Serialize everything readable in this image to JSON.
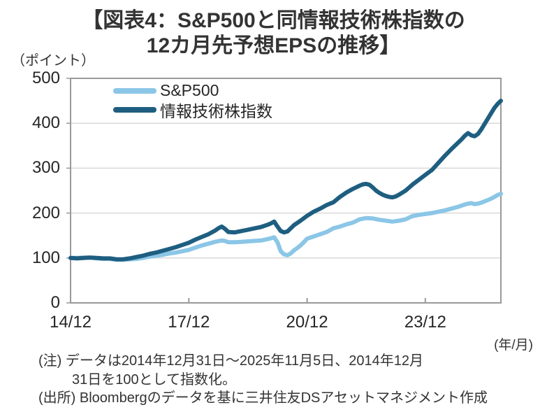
{
  "title": {
    "line1": "【図表4：S&P500と同情報技術株指数の",
    "line2": "12カ月先予想EPSの推移】"
  },
  "y_axis": {
    "unit_label": "（ポイント）"
  },
  "x_axis": {
    "unit_label": "(年/月)"
  },
  "notes": {
    "line1": "(注) データは2014年12月31日～2025年11月5日、2014年12月",
    "line2": "31日を100として指数化。",
    "source": "(出所) Bloombergのデータを基に三井住友DSアセットマネジメント作成"
  },
  "colors": {
    "sp500_line": "#8bc6e6",
    "it_line": "#1e5e80",
    "grid": "#d9d9d9",
    "axis_border": "#999999",
    "text": "#333333"
  },
  "chart_data": {
    "type": "line",
    "title": "【図表4：S&P500と同情報技術株指数の12カ月先予想EPSの推移】",
    "ylabel": "（ポイント）",
    "xlabel": "(年/月)",
    "ylim": [
      0,
      500
    ],
    "yticks": [
      0,
      100,
      200,
      300,
      400,
      500
    ],
    "xlim": [
      0,
      131
    ],
    "x_unit": "months since 2014/12 (data 2014/12/31 - 2025/11/5, indexed 2014/12/31 = 100)",
    "xticks": [
      {
        "m": 0,
        "label": "14/12"
      },
      {
        "m": 36,
        "label": "17/12"
      },
      {
        "m": 72,
        "label": "20/12"
      },
      {
        "m": 108,
        "label": "23/12"
      }
    ],
    "grid": "horizontal",
    "legend_position": "top-left-inside",
    "series": [
      {
        "name": "S&P500",
        "color": "#8bc6e6",
        "points": [
          [
            0,
            100
          ],
          [
            2,
            100
          ],
          [
            4,
            101
          ],
          [
            6,
            101
          ],
          [
            8,
            99
          ],
          [
            10,
            98
          ],
          [
            12,
            98
          ],
          [
            14,
            96
          ],
          [
            16,
            96
          ],
          [
            18,
            97
          ],
          [
            20,
            98
          ],
          [
            22,
            100
          ],
          [
            24,
            103
          ],
          [
            26,
            105
          ],
          [
            28,
            107
          ],
          [
            30,
            110
          ],
          [
            32,
            112
          ],
          [
            34,
            115
          ],
          [
            36,
            118
          ],
          [
            38,
            123
          ],
          [
            40,
            128
          ],
          [
            42,
            132
          ],
          [
            44,
            136
          ],
          [
            46,
            139
          ],
          [
            47,
            138
          ],
          [
            48,
            135
          ],
          [
            50,
            135
          ],
          [
            52,
            136
          ],
          [
            54,
            137
          ],
          [
            56,
            138
          ],
          [
            58,
            139
          ],
          [
            60,
            142
          ],
          [
            61,
            144
          ],
          [
            62,
            146
          ],
          [
            63,
            135
          ],
          [
            64,
            115
          ],
          [
            65,
            108
          ],
          [
            66,
            106
          ],
          [
            67,
            110
          ],
          [
            68,
            117
          ],
          [
            69,
            122
          ],
          [
            70,
            128
          ],
          [
            71,
            135
          ],
          [
            72,
            143
          ],
          [
            74,
            148
          ],
          [
            76,
            153
          ],
          [
            78,
            158
          ],
          [
            80,
            166
          ],
          [
            82,
            170
          ],
          [
            84,
            175
          ],
          [
            86,
            179
          ],
          [
            88,
            186
          ],
          [
            90,
            189
          ],
          [
            92,
            188
          ],
          [
            94,
            185
          ],
          [
            96,
            183
          ],
          [
            98,
            181
          ],
          [
            100,
            183
          ],
          [
            102,
            186
          ],
          [
            104,
            193
          ],
          [
            106,
            196
          ],
          [
            108,
            198
          ],
          [
            110,
            200
          ],
          [
            112,
            203
          ],
          [
            114,
            206
          ],
          [
            116,
            210
          ],
          [
            118,
            214
          ],
          [
            120,
            219
          ],
          [
            121,
            221
          ],
          [
            122,
            222
          ],
          [
            123,
            220
          ],
          [
            124,
            221
          ],
          [
            125,
            223
          ],
          [
            126,
            226
          ],
          [
            127,
            229
          ],
          [
            128,
            232
          ],
          [
            129,
            236
          ],
          [
            130,
            240
          ],
          [
            131,
            243
          ]
        ]
      },
      {
        "name": "情報技術株指数",
        "color": "#1e5e80",
        "points": [
          [
            0,
            100
          ],
          [
            2,
            99
          ],
          [
            4,
            100
          ],
          [
            6,
            101
          ],
          [
            8,
            100
          ],
          [
            10,
            99
          ],
          [
            12,
            99
          ],
          [
            14,
            97
          ],
          [
            16,
            97
          ],
          [
            18,
            99
          ],
          [
            20,
            102
          ],
          [
            22,
            105
          ],
          [
            24,
            109
          ],
          [
            26,
            112
          ],
          [
            28,
            116
          ],
          [
            30,
            120
          ],
          [
            32,
            124
          ],
          [
            34,
            129
          ],
          [
            36,
            134
          ],
          [
            38,
            141
          ],
          [
            40,
            147
          ],
          [
            42,
            153
          ],
          [
            44,
            161
          ],
          [
            45,
            166
          ],
          [
            46,
            170
          ],
          [
            47,
            165
          ],
          [
            48,
            158
          ],
          [
            50,
            157
          ],
          [
            52,
            160
          ],
          [
            54,
            163
          ],
          [
            56,
            166
          ],
          [
            58,
            169
          ],
          [
            60,
            174
          ],
          [
            61,
            177
          ],
          [
            62,
            181
          ],
          [
            63,
            170
          ],
          [
            64,
            160
          ],
          [
            65,
            157
          ],
          [
            66,
            159
          ],
          [
            67,
            166
          ],
          [
            68,
            173
          ],
          [
            70,
            183
          ],
          [
            72,
            194
          ],
          [
            74,
            203
          ],
          [
            76,
            210
          ],
          [
            78,
            218
          ],
          [
            80,
            224
          ],
          [
            82,
            236
          ],
          [
            84,
            246
          ],
          [
            86,
            254
          ],
          [
            88,
            261
          ],
          [
            89,
            264
          ],
          [
            90,
            265
          ],
          [
            91,
            263
          ],
          [
            92,
            257
          ],
          [
            93,
            250
          ],
          [
            94,
            245
          ],
          [
            95,
            241
          ],
          [
            96,
            238
          ],
          [
            97,
            236
          ],
          [
            98,
            235
          ],
          [
            99,
            237
          ],
          [
            100,
            241
          ],
          [
            102,
            250
          ],
          [
            104,
            263
          ],
          [
            106,
            274
          ],
          [
            108,
            285
          ],
          [
            110,
            296
          ],
          [
            112,
            312
          ],
          [
            114,
            328
          ],
          [
            116,
            343
          ],
          [
            118,
            357
          ],
          [
            119,
            364
          ],
          [
            120,
            372
          ],
          [
            121,
            378
          ],
          [
            122,
            373
          ],
          [
            123,
            371
          ],
          [
            124,
            376
          ],
          [
            125,
            386
          ],
          [
            126,
            398
          ],
          [
            127,
            410
          ],
          [
            128,
            422
          ],
          [
            129,
            434
          ],
          [
            130,
            443
          ],
          [
            131,
            450
          ]
        ]
      }
    ]
  }
}
